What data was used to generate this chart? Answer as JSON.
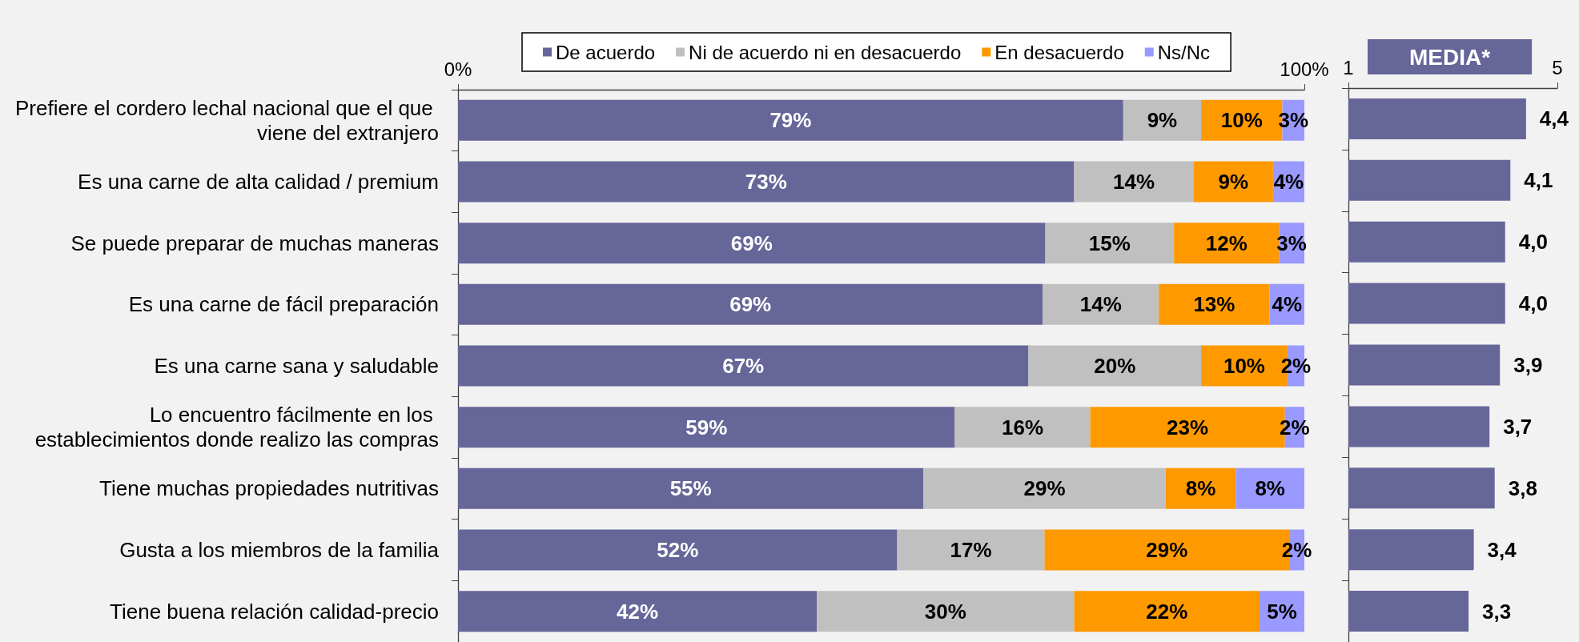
{
  "chart_data": [
    {
      "type": "bar",
      "orientation": "horizontal",
      "stacked": true,
      "categories": [
        "Prefiere el cordero lechal nacional que el que viene del extranjero",
        "Es una carne de alta calidad / premium",
        "Se puede preparar de muchas maneras",
        "Es una carne de fácil preparación",
        "Es una carne sana y saludable",
        "Lo encuentro fácilmente en los establecimientos donde realizo las compras",
        "Tiene muchas propiedades nutritivas",
        "Gusta a los miembros de la familia",
        "Tiene buena relación calidad-precio"
      ],
      "series": [
        {
          "name": "De acuerdo",
          "color": "#666699",
          "values": [
            78.6,
            72.8,
            69.4,
            69.1,
            67.4,
            58.7,
            55.0,
            51.9,
            42.4
          ],
          "value_labels": [
            "79%",
            "73%",
            "69%",
            "69%",
            "67%",
            "59%",
            "55%",
            "52%",
            "42%"
          ]
        },
        {
          "name": "Ni de acuerdo ni en desacuerdo",
          "color": "#c0c0c0",
          "values": [
            9.2,
            14.1,
            15.2,
            13.7,
            20.4,
            16.0,
            28.6,
            17.4,
            30.4
          ],
          "value_labels": [
            "9%",
            "14%",
            "15%",
            "14%",
            "20%",
            "16%",
            "29%",
            "17%",
            "30%"
          ]
        },
        {
          "name": "En desacuerdo",
          "color": "#ff9900",
          "values": [
            9.6,
            9.4,
            12.4,
            13.1,
            10.2,
            23.0,
            8.3,
            28.9,
            21.9
          ],
          "value_labels": [
            "10%",
            "9%",
            "12%",
            "13%",
            "10%",
            "23%",
            "8%",
            "29%",
            "22%"
          ]
        },
        {
          "name": "Ns/Nc",
          "color": "#9999ff",
          "values": [
            2.6,
            3.7,
            3.0,
            4.1,
            2.0,
            2.3,
            8.1,
            1.8,
            5.3
          ],
          "value_labels": [
            "3%",
            "4%",
            "3%",
            "4%",
            "2%",
            "2%",
            "8%",
            "2%",
            "5%"
          ]
        }
      ],
      "xlim": [
        0,
        100
      ],
      "xticks": [
        {
          "value": 0,
          "label": "0%"
        },
        {
          "value": 100,
          "label": "100%"
        }
      ],
      "legend": "top"
    },
    {
      "type": "bar",
      "orientation": "horizontal",
      "title": "MEDIA*",
      "categories": [
        null,
        null,
        null,
        null,
        null,
        null,
        null,
        null,
        null
      ],
      "values": [
        4.4,
        4.1,
        4.0,
        4.0,
        3.9,
        3.7,
        3.8,
        3.4,
        3.3
      ],
      "color": "#666699",
      "value_labels": [
        "4,4",
        "4,1",
        "4,0",
        "4,0",
        "3,9",
        "3,7",
        "3,8",
        "3,4",
        "3,3"
      ],
      "xlim": [
        1,
        5
      ],
      "xticks": [
        1,
        5
      ]
    }
  ]
}
